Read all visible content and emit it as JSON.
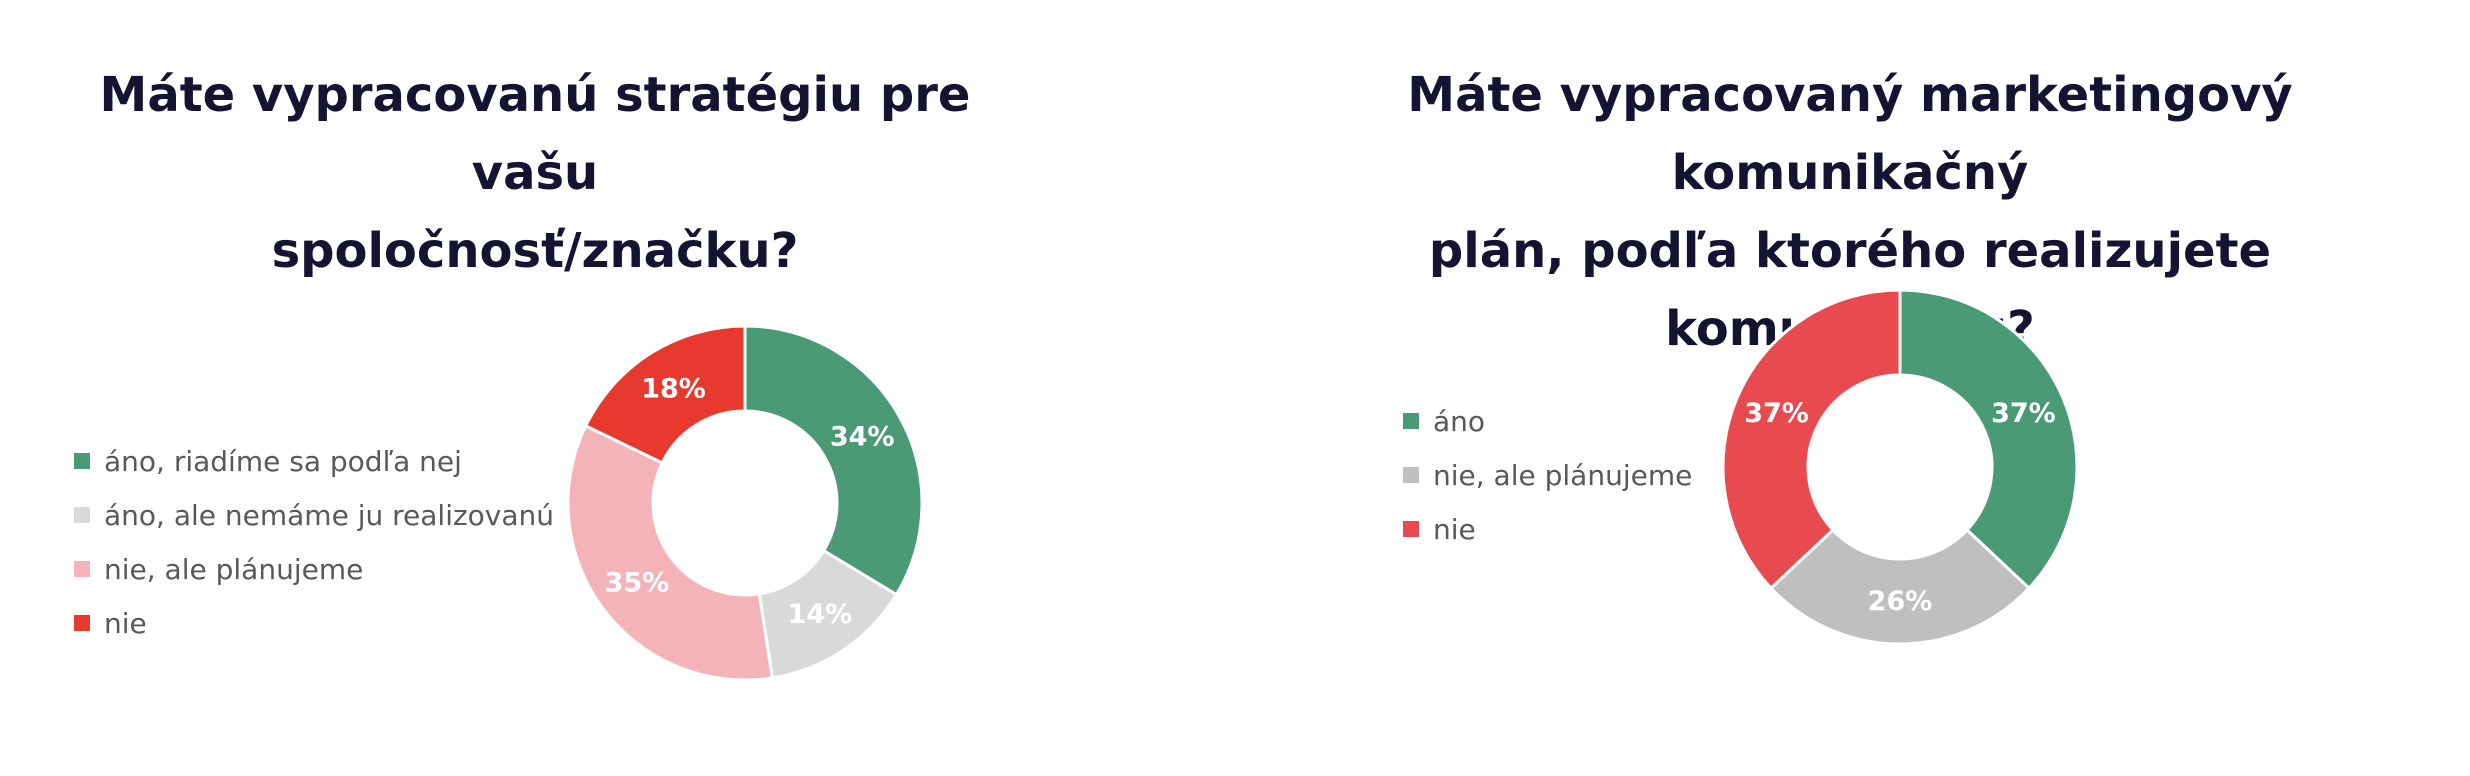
{
  "chart_data": [
    {
      "type": "pie",
      "subtype": "donut",
      "title_lines": [
        "Máte vypracovanú stratégiu pre vašu",
        "spoločnosť/značku?"
      ],
      "categories": [
        "áno, riadíme sa podľa nej",
        "áno, ale nemáme ju realizovanú",
        "nie, ale plánujeme",
        "nie"
      ],
      "values": [
        34,
        14,
        35,
        18
      ],
      "labels": [
        "34%",
        "14%",
        "35%",
        "18%"
      ],
      "colors": [
        "#4a9a76",
        "#d9d9d9",
        "#f4b3b8",
        "#e8392f"
      ],
      "legend_position": "left"
    },
    {
      "type": "pie",
      "subtype": "donut",
      "title_lines": [
        "Máte vypracovaný marketingový komunikačný",
        "plán, podľa ktorého realizujete komunikáciu?"
      ],
      "categories": [
        "áno",
        "nie, ale plánujeme",
        "nie"
      ],
      "values": [
        37,
        26,
        37
      ],
      "labels": [
        "37%",
        "26%",
        "37%"
      ],
      "colors": [
        "#4a9a76",
        "#bfbfbf",
        "#e84b4f"
      ],
      "legend_position": "left"
    }
  ]
}
